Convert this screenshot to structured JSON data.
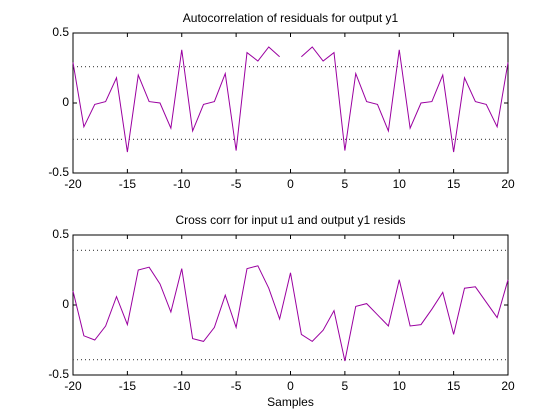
{
  "chart_data": [
    {
      "type": "line",
      "title": "Autocorrelation of residuals for output y1",
      "x": [
        -20,
        -19,
        -18,
        -17,
        -16,
        -15,
        -14,
        -13,
        -12,
        -11,
        -10,
        -9,
        -8,
        -7,
        -6,
        -5,
        -4,
        -3,
        -2,
        -1,
        0,
        1,
        2,
        3,
        4,
        5,
        6,
        7,
        8,
        9,
        10,
        11,
        12,
        13,
        14,
        15,
        16,
        17,
        18,
        19,
        20
      ],
      "series": [
        {
          "color": "#9a00a0",
          "values": [
            0.29,
            -0.17,
            -0.01,
            0.01,
            0.18,
            -0.35,
            0.2,
            0.01,
            0,
            -0.18,
            0.38,
            -0.2,
            -0.01,
            0.01,
            0.21,
            -0.34,
            0.36,
            0.3,
            0.4,
            0.33,
            null,
            0.33,
            0.4,
            0.3,
            0.36,
            -0.34,
            0.21,
            0.01,
            -0.01,
            -0.2,
            0.38,
            -0.18,
            0,
            0.01,
            0.2,
            -0.35,
            0.18,
            0.01,
            -0.01,
            -0.17,
            0.29
          ]
        }
      ],
      "confidence_bounds": [
        -0.26,
        0.26
      ],
      "xlim": [
        -20,
        20
      ],
      "xticks": [
        -20,
        -15,
        -10,
        -5,
        0,
        5,
        10,
        15,
        20
      ],
      "ylim": [
        -0.5,
        0.5
      ],
      "yticks": [
        -0.5,
        0,
        0.5
      ]
    },
    {
      "type": "line",
      "title": "Cross corr for input u1 and output y1 resids",
      "x_label": "Samples",
      "x": [
        -20,
        -19,
        -18,
        -17,
        -16,
        -15,
        -14,
        -13,
        -12,
        -11,
        -10,
        -9,
        -8,
        -7,
        -6,
        -5,
        -4,
        -3,
        -2,
        -1,
        0,
        1,
        2,
        3,
        4,
        5,
        6,
        7,
        8,
        9,
        10,
        11,
        12,
        13,
        14,
        15,
        16,
        17,
        18,
        19,
        20
      ],
      "series": [
        {
          "color": "#9a00a0",
          "values": [
            0.1,
            -0.22,
            -0.25,
            -0.15,
            0.06,
            -0.14,
            0.25,
            0.27,
            0.15,
            -0.05,
            0.26,
            -0.24,
            -0.26,
            -0.16,
            0.07,
            -0.16,
            0.26,
            0.28,
            0.12,
            -0.1,
            0.23,
            -0.21,
            -0.26,
            -0.18,
            -0.04,
            -0.4,
            -0.01,
            0.01,
            -0.07,
            -0.15,
            0.18,
            -0.15,
            -0.14,
            -0.03,
            0.09,
            -0.21,
            0.12,
            0.13,
            0.02,
            -0.09,
            0.18
          ]
        }
      ],
      "confidence_bounds": [
        -0.39,
        0.39
      ],
      "xlim": [
        -20,
        20
      ],
      "xticks": [
        -20,
        -15,
        -10,
        -5,
        0,
        5,
        10,
        15,
        20
      ],
      "ylim": [
        -0.5,
        0.5
      ],
      "yticks": [
        -0.5,
        0,
        0.5
      ]
    }
  ]
}
